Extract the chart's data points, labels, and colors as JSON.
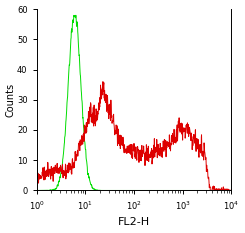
{
  "xlabel": "FL2-H",
  "ylabel": "Counts",
  "xlim_log": [
    0,
    4
  ],
  "ylim": [
    0,
    60
  ],
  "yticks": [
    0,
    10,
    20,
    30,
    40,
    50,
    60
  ],
  "ytick_labels": [
    "0",
    "10",
    "20",
    "30",
    "40",
    "50",
    "60"
  ],
  "green_color": "#00dd00",
  "red_color": "#dd0000",
  "background_color": "#ffffff",
  "xlabel_fontsize": 8,
  "ylabel_fontsize": 7,
  "tick_labelsize": 6,
  "linewidth": 0.7,
  "green_peak_logx": 0.78,
  "green_peak_std": 0.13,
  "green_peak_height": 58,
  "red_peak1_logx": 1.2,
  "red_peak1_std": 0.28,
  "red_peak1_height": 25,
  "red_flat_level": 12,
  "red_peak2_logx": 3.0,
  "red_peak2_std": 0.22,
  "red_peak2_height": 8,
  "red_low_logx": 0.3,
  "red_low_std": 0.35,
  "red_low_height": 6
}
